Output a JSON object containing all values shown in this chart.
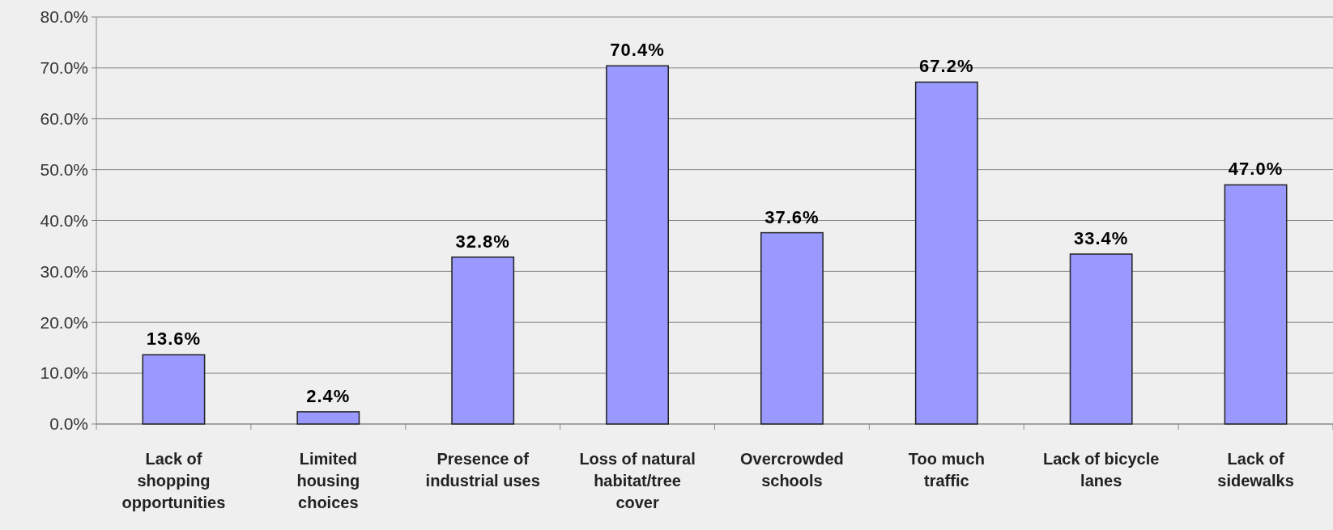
{
  "chart_data": {
    "type": "bar",
    "categories": [
      "Lack of shopping opportunities",
      "Limited housing choices",
      "Presence of industrial uses",
      "Loss of natural habitat/tree cover",
      "Overcrowded schools",
      "Too much traffic",
      "Lack of bicycle lanes",
      "Lack of sidewalks"
    ],
    "values": [
      13.6,
      2.4,
      32.8,
      70.4,
      37.6,
      67.2,
      33.4,
      47.0
    ],
    "value_labels": [
      "13.6%",
      "2.4%",
      "32.8%",
      "70.4%",
      "37.6%",
      "67.2%",
      "33.4%",
      "47.0%"
    ],
    "color": "#9999ff",
    "ylim": [
      0,
      80
    ],
    "yticks": [
      {
        "value": 0,
        "label": "0.0%"
      },
      {
        "value": 10,
        "label": "10.0%"
      },
      {
        "value": 20,
        "label": "20.0%"
      },
      {
        "value": 30,
        "label": "30.0%"
      },
      {
        "value": 40,
        "label": "40.0%"
      },
      {
        "value": 50,
        "label": "50.0%"
      },
      {
        "value": 60,
        "label": "60.0%"
      },
      {
        "value": 70,
        "label": "70.0%"
      },
      {
        "value": 80,
        "label": "80.0%"
      }
    ],
    "grid": "y"
  }
}
